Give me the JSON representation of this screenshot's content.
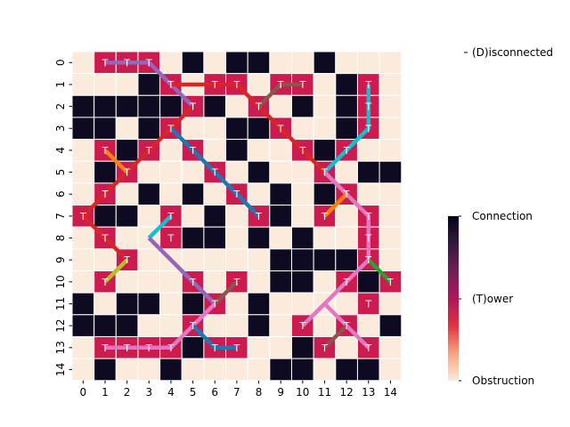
{
  "chart_data": {
    "type": "heatmap",
    "rows": [
      0,
      1,
      2,
      3,
      4,
      5,
      6,
      7,
      8,
      9,
      10,
      11,
      12,
      13,
      14
    ],
    "cols": [
      0,
      1,
      2,
      3,
      4,
      5,
      6,
      7,
      8,
      9,
      10,
      11,
      12,
      13,
      14
    ],
    "x_tick_labels": [
      "0",
      "1",
      "2",
      "3",
      "4",
      "5",
      "6",
      "7",
      "8",
      "9",
      "10",
      "11",
      "12",
      "13",
      "14"
    ],
    "y_tick_labels": [
      "0",
      "1",
      "2",
      "3",
      "4",
      "5",
      "6",
      "7",
      "8",
      "9",
      "10",
      "11",
      "12",
      "13",
      "14"
    ],
    "cell_legend": {
      "F": "Connection",
      "T": "(T)ower",
      "O": "Obstruction"
    },
    "grid": [
      "FTTTFOFOOFFOFFF",
      "FFFOTFTTFTTFOTF",
      "OOOOOTOFTFOFOTF",
      "OOFOTFFOOTFFOTF",
      "FTOTFTFOFFTOTFF",
      "FOTFFFTFOFFTFOO",
      "FTFOFOFTFOFOTFF",
      "TOOFTFOFTOFTFTF",
      "FTFFTOOFOFOFFTF",
      "FFTFFFFFFOOOOTF",
      "FTFFFTFTFOOFTOT",
      "OFOOFOTFOFFFFTF",
      "OOOFFTFFOFTFTFO",
      "FTTTTOTTFFOTFTF",
      "FOFFOFFFFOOFOOF"
    ],
    "tower_label": "T",
    "colorbar": {
      "labels": [
        "Connection",
        "(T)ower",
        "Obstruction"
      ],
      "gradient": [
        "#faebdd",
        "#f6a47f",
        "#e13342",
        "#ad1759",
        "#701f57",
        "#35193e",
        "#03051a"
      ]
    },
    "legend_entries": [
      "(D)isconnected"
    ],
    "colors": {
      "connection": "#faebdd",
      "tower": "#cb1b4f",
      "obstruction": "#0d0a21",
      "cell_border": "#ffffff"
    },
    "links": [
      {
        "color": "#9467bd",
        "points": [
          [
            1,
            0
          ],
          [
            3,
            0
          ],
          [
            5,
            2
          ]
        ]
      },
      {
        "color": "#d62728",
        "points": [
          [
            5,
            2
          ],
          [
            3,
            4
          ],
          [
            0,
            7
          ],
          [
            2,
            9
          ],
          [
            1,
            10
          ]
        ]
      },
      {
        "color": "#d62728",
        "points": [
          [
            4,
            1
          ],
          [
            7,
            1
          ],
          [
            8,
            2
          ],
          [
            12,
            6
          ],
          [
            13,
            7
          ]
        ]
      },
      {
        "color": "#8c564b",
        "points": [
          [
            8,
            2
          ],
          [
            9,
            1
          ],
          [
            10,
            1
          ]
        ]
      },
      {
        "color": "#1f77b4",
        "points": [
          [
            4,
            3
          ],
          [
            8,
            7
          ]
        ]
      },
      {
        "color": "#ff7f0e",
        "points": [
          [
            1,
            4
          ],
          [
            2,
            5
          ]
        ]
      },
      {
        "color": "#17becf",
        "points": [
          [
            13,
            1
          ],
          [
            13,
            3
          ],
          [
            11,
            5
          ]
        ]
      },
      {
        "color": "#e377c2",
        "points": [
          [
            11,
            5
          ],
          [
            13,
            7
          ],
          [
            13,
            9
          ],
          [
            11,
            11
          ],
          [
            13,
            13
          ]
        ]
      },
      {
        "color": "#ff7f0e",
        "points": [
          [
            11,
            7
          ],
          [
            12,
            6
          ]
        ]
      },
      {
        "color": "#17becf",
        "points": [
          [
            4,
            7
          ],
          [
            3,
            8
          ]
        ]
      },
      {
        "color": "#9467bd",
        "points": [
          [
            3,
            8
          ],
          [
            6,
            11
          ]
        ]
      },
      {
        "color": "#8c564b",
        "points": [
          [
            6,
            11
          ],
          [
            7,
            10
          ]
        ]
      },
      {
        "color": "#e377c2",
        "points": [
          [
            6,
            11
          ],
          [
            4,
            13
          ],
          [
            1,
            13
          ]
        ]
      },
      {
        "color": "#bcbd22",
        "points": [
          [
            1,
            10
          ],
          [
            2,
            9
          ]
        ]
      },
      {
        "color": "#2ca02c",
        "points": [
          [
            13,
            9
          ],
          [
            14,
            10
          ]
        ]
      },
      {
        "color": "#1f77b4",
        "points": [
          [
            5,
            12
          ],
          [
            6,
            13
          ],
          [
            7,
            13
          ]
        ]
      },
      {
        "color": "#e377c2",
        "points": [
          [
            11,
            11
          ],
          [
            10,
            12
          ]
        ]
      },
      {
        "color": "#8c564b",
        "points": [
          [
            11,
            13
          ],
          [
            12,
            12
          ]
        ]
      }
    ]
  }
}
